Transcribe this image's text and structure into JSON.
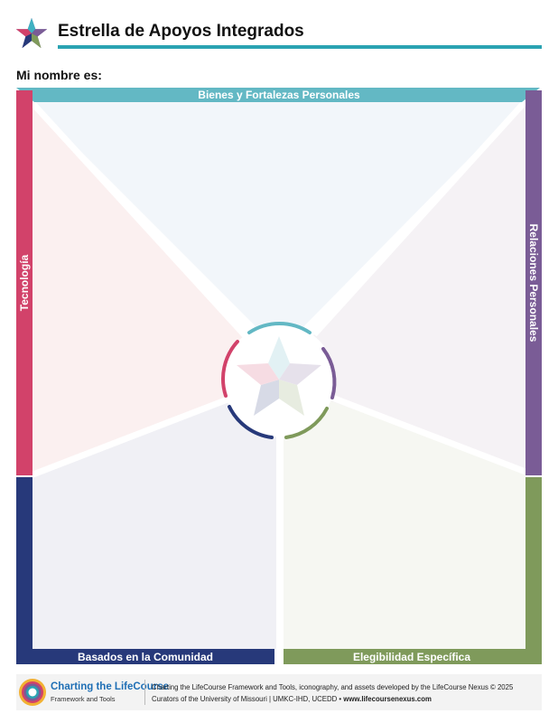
{
  "header": {
    "title": "Estrella de Apoyos Integrados",
    "star_icon": "lifecourse-star-icon"
  },
  "form": {
    "name_label": "Mi nombre es:"
  },
  "segments": {
    "top": {
      "label": "Bienes y Fortalezas Personales",
      "color": "#63b8c4",
      "tint": "#f2f6fa"
    },
    "right": {
      "label": "Relaciones Personales",
      "color": "#7a5c96",
      "tint": "#f5f2f5"
    },
    "bottom_right": {
      "label": "Elegibilidad Específica",
      "color": "#7f9a5b",
      "tint": "#f6f7f2"
    },
    "bottom_left": {
      "label": "Basados en la Comunidad",
      "color": "#27397a",
      "tint": "#f0f0f5"
    },
    "left": {
      "label": "Tecnología",
      "color": "#d2426a",
      "tint": "#fbf0f0"
    }
  },
  "footer": {
    "brand": "Charting the LifeCourse",
    "brand_sub": "Framework and Tools",
    "line1": "Charting the LifeCourse Framework and Tools, iconography, and assets developed by the LifeCourse Nexus © 2025",
    "line2_prefix": "Curators of the University of Missouri | UMKC-IHD, UCEDD • ",
    "url": "www.lifecoursenexus.com",
    "logo_icon": "lifecourse-circle-logo-icon"
  }
}
